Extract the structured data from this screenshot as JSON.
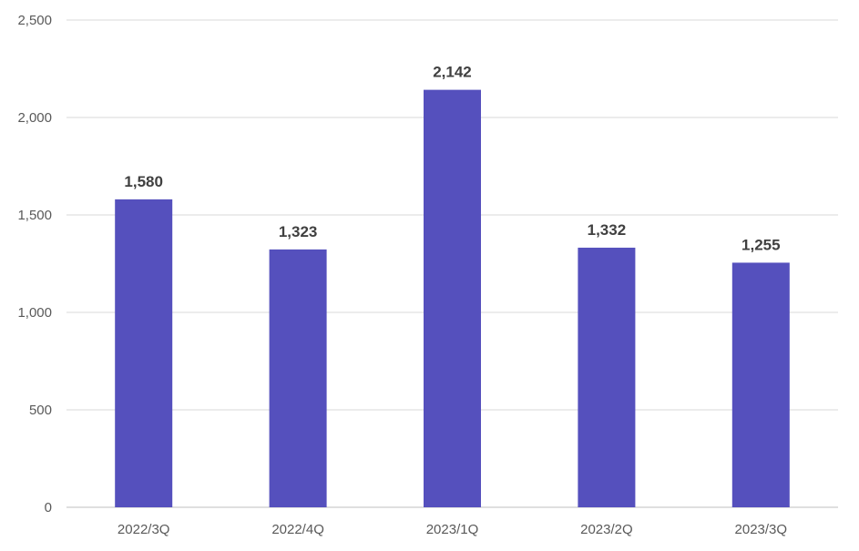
{
  "chart_data": {
    "type": "bar",
    "title": "",
    "xlabel": "",
    "ylabel": "",
    "categories": [
      "2022/3Q",
      "2022/4Q",
      "2023/1Q",
      "2023/2Q",
      "2023/3Q"
    ],
    "values": [
      1580,
      1323,
      2142,
      1332,
      1255
    ],
    "value_labels": [
      "1,580",
      "1,323",
      "2,142",
      "1,332",
      "1,255"
    ],
    "ylim": [
      0,
      2500
    ],
    "yticks": [
      0,
      500,
      1000,
      1500,
      2000,
      2500
    ],
    "ytick_labels": [
      "0",
      "500",
      "1,000",
      "1,500",
      "2,000",
      "2,500"
    ],
    "grid": true,
    "legend": "none",
    "bar_color": "#5550bd"
  }
}
